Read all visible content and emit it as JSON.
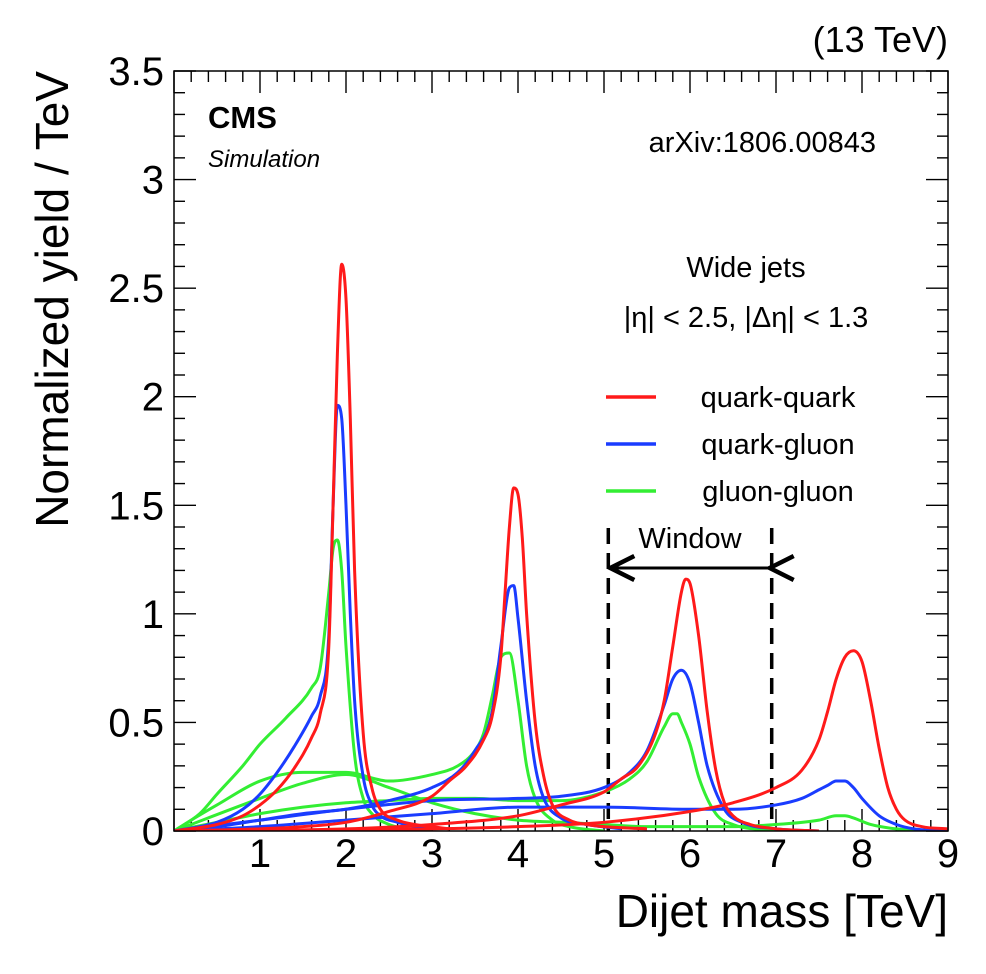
{
  "chart_data": {
    "type": "line",
    "title": "",
    "energy_label": "(13 TeV)",
    "experiment_label": "CMS",
    "experiment_sublabel": "Simulation",
    "reference": "arXiv:1806.00843",
    "selection": {
      "line1": "Wide jets",
      "line2": "|η| < 2.5, |Δη| < 1.3"
    },
    "xlabel": "Dijet mass [TeV]",
    "ylabel": "Normalized yield / TeV",
    "xlim": [
      0,
      9
    ],
    "ylim": [
      0,
      3.5
    ],
    "xticks": [
      1,
      2,
      3,
      4,
      5,
      6,
      7,
      8,
      9
    ],
    "yticks": [
      0,
      0.5,
      1,
      1.5,
      2,
      2.5,
      3,
      3.5
    ],
    "xtick_labels": [
      "1",
      "2",
      "3",
      "4",
      "5",
      "6",
      "7",
      "8",
      "9"
    ],
    "ytick_labels": [
      "0",
      "0.5",
      "1",
      "1.5",
      "2",
      "2.5",
      "3",
      "3.5"
    ],
    "window": {
      "label": "Window",
      "x_low": 5.05,
      "x_high": 6.95
    },
    "legend_position": "right",
    "series": [
      {
        "name": "quark-quark",
        "color": "#ff1a1a",
        "curves": [
          {
            "mass": 2,
            "x": [
              0,
              0.5,
              0.8,
              1.0,
              1.2,
              1.4,
              1.6,
              1.7,
              1.8,
              1.85,
              1.9,
              1.95,
              2.0,
              2.05,
              2.1,
              2.2,
              2.3,
              2.4,
              2.6,
              2.8,
              3.0,
              3.2
            ],
            "y": [
              0,
              0.03,
              0.07,
              0.12,
              0.19,
              0.29,
              0.43,
              0.54,
              0.85,
              1.5,
              2.2,
              2.61,
              2.45,
              1.9,
              1.2,
              0.45,
              0.2,
              0.1,
              0.05,
              0.03,
              0.02,
              0.01
            ]
          },
          {
            "mass": 4,
            "x": [
              0,
              1,
              1.5,
              2,
              2.5,
              3,
              3.2,
              3.4,
              3.6,
              3.7,
              3.8,
              3.85,
              3.9,
              3.95,
              4.0,
              4.05,
              4.1,
              4.2,
              4.3,
              4.4,
              4.6,
              4.8,
              5.0,
              5.5
            ],
            "y": [
              0,
              0.01,
              0.02,
              0.04,
              0.09,
              0.16,
              0.23,
              0.3,
              0.42,
              0.53,
              0.8,
              1.1,
              1.4,
              1.58,
              1.55,
              1.35,
              1.0,
              0.5,
              0.25,
              0.12,
              0.05,
              0.03,
              0.02,
              0.01
            ]
          },
          {
            "mass": 6,
            "x": [
              0,
              2,
              3,
              4,
              4.5,
              5.0,
              5.2,
              5.4,
              5.6,
              5.7,
              5.8,
              5.9,
              5.95,
              6.0,
              6.1,
              6.2,
              6.3,
              6.4,
              6.5,
              6.7,
              7.0,
              7.5
            ],
            "y": [
              0,
              0.01,
              0.03,
              0.07,
              0.12,
              0.18,
              0.24,
              0.3,
              0.45,
              0.6,
              0.85,
              1.1,
              1.16,
              1.14,
              0.9,
              0.55,
              0.28,
              0.13,
              0.07,
              0.03,
              0.01,
              0
            ]
          },
          {
            "mass": 8,
            "x": [
              0,
              3,
              4,
              5,
              6,
              6.5,
              7.0,
              7.3,
              7.5,
              7.6,
              7.7,
              7.8,
              7.9,
              8.0,
              8.1,
              8.2,
              8.3,
              8.4,
              8.5,
              8.7,
              9.0
            ],
            "y": [
              0,
              0.01,
              0.02,
              0.04,
              0.09,
              0.13,
              0.2,
              0.28,
              0.42,
              0.55,
              0.7,
              0.8,
              0.83,
              0.78,
              0.6,
              0.38,
              0.2,
              0.1,
              0.05,
              0.02,
              0.01
            ]
          }
        ]
      },
      {
        "name": "quark-gluon",
        "color": "#1a3cff",
        "curves": [
          {
            "mass": 2,
            "x": [
              0,
              0.5,
              0.8,
              1.0,
              1.2,
              1.4,
              1.6,
              1.7,
              1.8,
              1.85,
              1.9,
              1.95,
              2.0,
              2.05,
              2.1,
              2.2,
              2.3,
              2.4,
              2.6,
              2.8,
              3.0
            ],
            "y": [
              0,
              0.04,
              0.1,
              0.17,
              0.27,
              0.39,
              0.53,
              0.62,
              0.9,
              1.5,
              1.96,
              1.9,
              1.5,
              1.0,
              0.6,
              0.25,
              0.12,
              0.07,
              0.04,
              0.02,
              0.01
            ]
          },
          {
            "mass": 4,
            "x": [
              0,
              0.5,
              1,
              1.5,
              2,
              2.5,
              3,
              3.3,
              3.5,
              3.7,
              3.8,
              3.9,
              3.95,
              4.0,
              4.1,
              4.2,
              4.3,
              4.5,
              4.8,
              5.2
            ],
            "y": [
              0,
              0.02,
              0.05,
              0.08,
              0.1,
              0.14,
              0.2,
              0.27,
              0.37,
              0.55,
              0.85,
              1.12,
              1.13,
              0.98,
              0.6,
              0.3,
              0.15,
              0.06,
              0.03,
              0.01
            ]
          },
          {
            "mass": 6,
            "x": [
              0,
              1,
              2,
              3,
              4,
              4.5,
              5.0,
              5.3,
              5.5,
              5.7,
              5.8,
              5.9,
              6.0,
              6.1,
              6.2,
              6.4,
              6.6,
              7.0,
              7.5
            ],
            "y": [
              0,
              0.05,
              0.1,
              0.14,
              0.15,
              0.16,
              0.2,
              0.27,
              0.37,
              0.58,
              0.7,
              0.74,
              0.68,
              0.5,
              0.3,
              0.1,
              0.04,
              0.01,
              0
            ]
          },
          {
            "mass": 8,
            "x": [
              0,
              1,
              2,
              3,
              4,
              5,
              6,
              6.5,
              7.0,
              7.3,
              7.5,
              7.6,
              7.7,
              7.8,
              7.9,
              8.0,
              8.2,
              8.4,
              8.6,
              9.0
            ],
            "y": [
              0,
              0.02,
              0.05,
              0.08,
              0.11,
              0.11,
              0.1,
              0.1,
              0.12,
              0.15,
              0.19,
              0.21,
              0.23,
              0.23,
              0.2,
              0.15,
              0.07,
              0.03,
              0.01,
              0
            ]
          }
        ]
      },
      {
        "name": "gluon-gluon",
        "color": "#33ee33",
        "curves": [
          {
            "mass": 2,
            "x": [
              0,
              0.3,
              0.5,
              0.8,
              1.0,
              1.3,
              1.6,
              1.7,
              1.8,
              1.85,
              1.9,
              1.95,
              2.0,
              2.1,
              2.2,
              2.3,
              2.5,
              2.7,
              3.0
            ],
            "y": [
              0,
              0.08,
              0.17,
              0.3,
              0.4,
              0.52,
              0.66,
              0.75,
              1.1,
              1.3,
              1.34,
              1.2,
              0.85,
              0.35,
              0.15,
              0.08,
              0.03,
              0.01,
              0
            ]
          },
          {
            "mass": 4,
            "x": [
              0,
              0.2,
              0.5,
              1.0,
              1.5,
              2.0,
              2.5,
              3.0,
              3.3,
              3.5,
              3.6,
              3.7,
              3.8,
              3.9,
              4.0,
              4.1,
              4.2,
              4.4,
              4.6,
              5.0
            ],
            "y": [
              0,
              0.05,
              0.12,
              0.23,
              0.27,
              0.27,
              0.23,
              0.26,
              0.3,
              0.37,
              0.45,
              0.62,
              0.8,
              0.82,
              0.6,
              0.3,
              0.15,
              0.05,
              0.02,
              0
            ]
          },
          {
            "mass": 6,
            "x": [
              0,
              0.5,
              1,
              1.5,
              2,
              2.5,
              3,
              3.5,
              4,
              4.5,
              5,
              5.3,
              5.5,
              5.7,
              5.8,
              5.85,
              5.9,
              6.0,
              6.1,
              6.3,
              6.5,
              7.0
            ],
            "y": [
              0,
              0.04,
              0.08,
              0.11,
              0.13,
              0.14,
              0.15,
              0.15,
              0.14,
              0.14,
              0.18,
              0.24,
              0.32,
              0.48,
              0.54,
              0.54,
              0.5,
              0.4,
              0.25,
              0.08,
              0.03,
              0
            ]
          },
          {
            "mass": 8,
            "x": [
              0,
              1,
              1.5,
              2,
              2.5,
              3,
              3.5,
              4,
              4.5,
              5,
              5.5,
              6,
              6.5,
              7,
              7.5,
              7.7,
              7.8,
              7.9,
              8.1,
              8.4,
              9.0
            ],
            "y": [
              0,
              0.15,
              0.22,
              0.26,
              0.2,
              0.13,
              0.08,
              0.05,
              0.04,
              0.03,
              0.02,
              0.02,
              0.02,
              0.03,
              0.05,
              0.07,
              0.07,
              0.06,
              0.03,
              0.01,
              0
            ]
          }
        ]
      }
    ]
  }
}
